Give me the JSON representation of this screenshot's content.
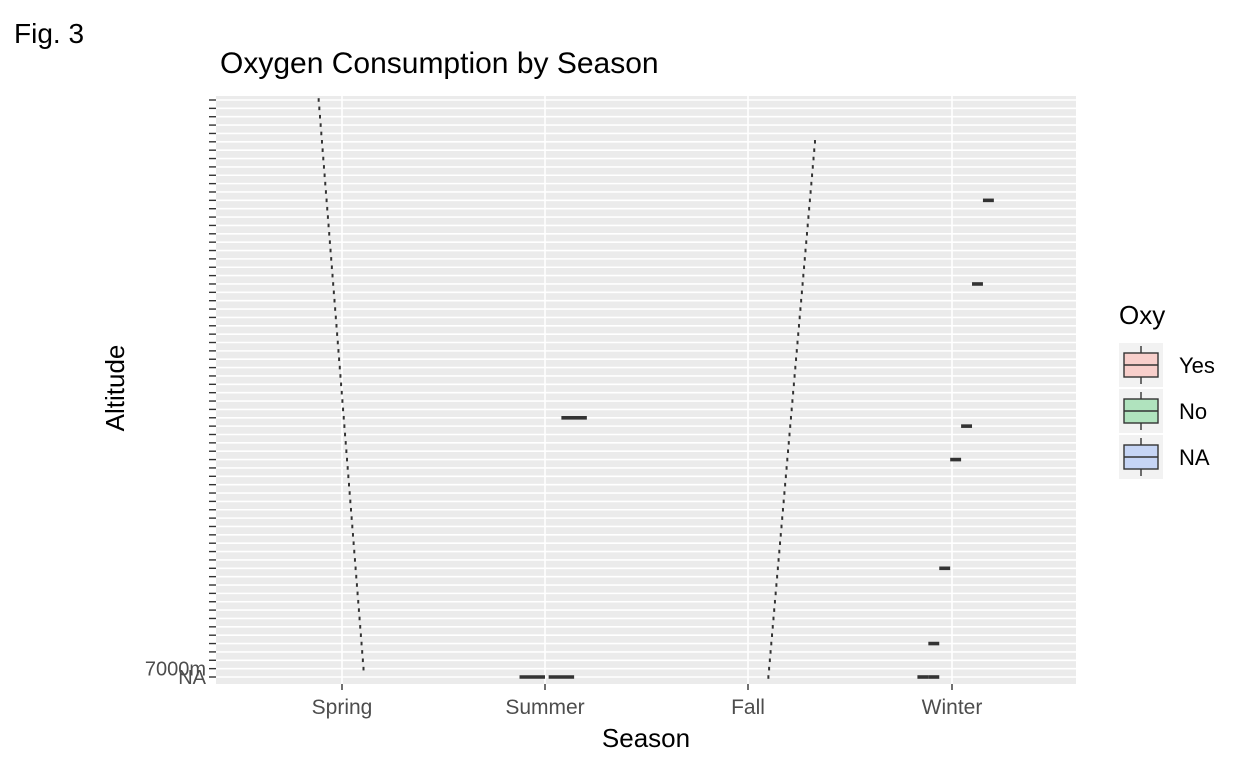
{
  "figure_label": "Fig. 3",
  "chart_data": {
    "type": "boxplot",
    "title": "Oxygen Consumption by Season",
    "xlabel": "Season",
    "ylabel": "Altitude",
    "categories": [
      "Spring",
      "Summer",
      "Fall",
      "Winter"
    ],
    "y_bottom_tick_labels": [
      "NA",
      "7000m"
    ],
    "y_ticks_overlapping": true,
    "grid": true,
    "legend": {
      "title": "Oxy",
      "position": "right",
      "entries": [
        {
          "label": "Yes",
          "fill": "#F8CFCB"
        },
        {
          "label": "No",
          "fill": "#B0E3BE"
        },
        {
          "label": "NA",
          "fill": "#C6D5F5"
        }
      ]
    },
    "y_levels_count": 70,
    "boxes": [
      {
        "season": "Spring",
        "level_from": 1,
        "level_to": 69,
        "dodge_from": 0.62,
        "dodge_to": 0.37
      },
      {
        "season": "Summer",
        "level": 0,
        "dodge_from": 0.36,
        "dodge_to": 0.5
      },
      {
        "season": "Summer",
        "level": 0,
        "dodge_from": 0.52,
        "dodge_to": 0.66
      },
      {
        "season": "Summer",
        "level": 31,
        "dodge_from": 0.59,
        "dodge_to": 0.73
      },
      {
        "season": "Fall",
        "level_from": 0,
        "level_to": 64,
        "dodge_from": 0.61,
        "dodge_to": 0.87
      },
      {
        "season": "Winter",
        "level": 0,
        "dodge_from": 0.31,
        "dodge_to": 0.37
      },
      {
        "season": "Winter",
        "level": 0,
        "dodge_from": 0.37,
        "dodge_to": 0.43
      },
      {
        "season": "Winter",
        "level": 4,
        "dodge_from": 0.37,
        "dodge_to": 0.43
      },
      {
        "season": "Winter",
        "level": 13,
        "dodge_from": 0.43,
        "dodge_to": 0.49
      },
      {
        "season": "Winter",
        "level": 26,
        "dodge_from": 0.49,
        "dodge_to": 0.55
      },
      {
        "season": "Winter",
        "level": 30,
        "dodge_from": 0.55,
        "dodge_to": 0.61
      },
      {
        "season": "Winter",
        "level": 47,
        "dodge_from": 0.61,
        "dodge_to": 0.67
      },
      {
        "season": "Winter",
        "level": 57,
        "dodge_from": 0.67,
        "dodge_to": 0.73
      }
    ],
    "colors": {
      "panel_bg": "#EBEBEB",
      "grid_major": "#FFFFFF",
      "box_line": "#333333",
      "text": "#000000",
      "tick_text": "#4D4D4D"
    }
  }
}
